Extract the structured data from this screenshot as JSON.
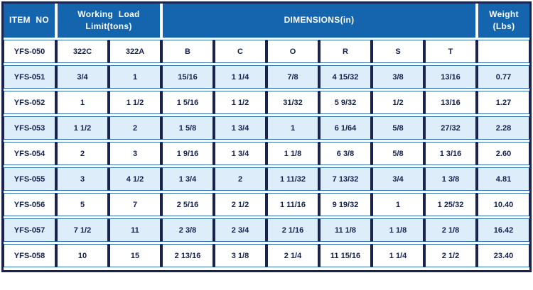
{
  "table": {
    "title_row": {
      "item_no": "ITEM NO",
      "working_load_line1": "Working Load",
      "working_load_line2": "Limit(tons)",
      "dimensions": "DIMENSIONS(in)",
      "weight_line1": "Weight",
      "weight_line2": "(Lbs)"
    },
    "subheader": [
      "YFS-050",
      "322C",
      "322A",
      "B",
      "C",
      "O",
      "R",
      "S",
      "T",
      ""
    ],
    "rows": [
      [
        "YFS-051",
        "3/4",
        "1",
        "15/16",
        "1 1/4",
        "7/8",
        "4 15/32",
        "3/8",
        "13/16",
        "0.77"
      ],
      [
        "YFS-052",
        "1",
        "1 1/2",
        "1 5/16",
        "1 1/2",
        "31/32",
        "5 9/32",
        "1/2",
        "13/16",
        "1.27"
      ],
      [
        "YFS-053",
        "1 1/2",
        "2",
        "1 5/8",
        "1 3/4",
        "1",
        "6 1/64",
        "5/8",
        "27/32",
        "2.28"
      ],
      [
        "YFS-054",
        "2",
        "3",
        "1 9/16",
        "1 3/4",
        "1 1/8",
        "6 3/8",
        "5/8",
        "1 3/16",
        "2.60"
      ],
      [
        "YFS-055",
        "3",
        "4 1/2",
        "1 3/4",
        "2",
        "1 11/32",
        "7 13/32",
        "3/4",
        "1 3/8",
        "4.81"
      ],
      [
        "YFS-056",
        "5",
        "7",
        "2 5/16",
        "2 1/2",
        "1 11/16",
        "9 19/32",
        "1",
        "1 25/32",
        "10.40"
      ],
      [
        "YFS-057",
        "7 1/2",
        "11",
        "2 3/8",
        "2 3/4",
        "2 1/16",
        "11 1/8",
        "1 1/8",
        "2 1/8",
        "16.42"
      ],
      [
        "YFS-058",
        "10",
        "15",
        "2 13/16",
        "3 1/8",
        "2 1/4",
        "11 15/16",
        "1 1/4",
        "2 1/2",
        "23.40"
      ]
    ],
    "colors": {
      "header_bg": "#1465ae",
      "header_text": "#ffffff",
      "row_alt_bg": "#ddedfa",
      "border_dark": "#18244e",
      "border_blue": "#2e6fad",
      "text_dark": "#14214d"
    }
  }
}
